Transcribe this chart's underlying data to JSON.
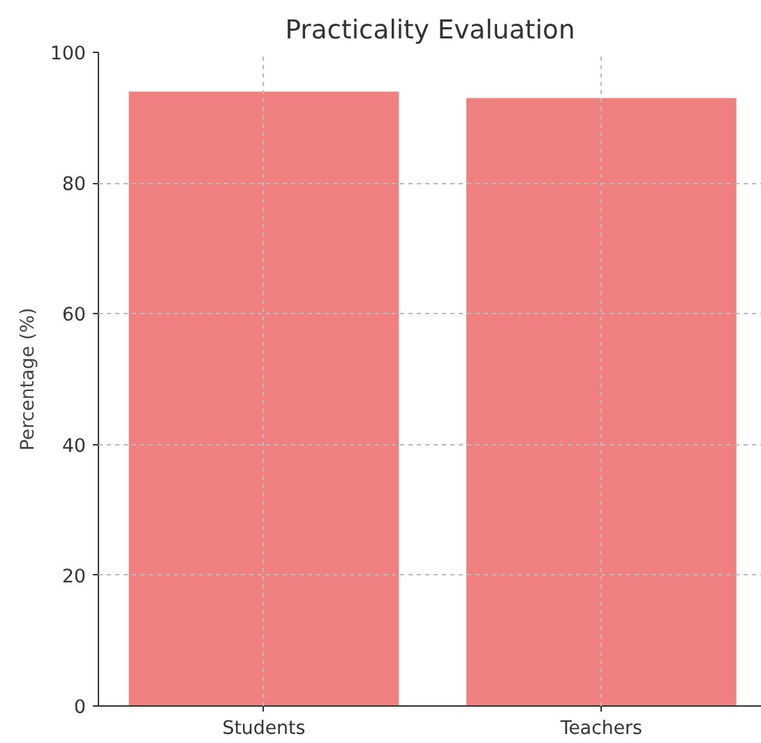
{
  "chart_data": {
    "type": "bar",
    "title": "Practicality Evaluation",
    "ylabel": "Percentage (%)",
    "categories": [
      "Students",
      "Teachers"
    ],
    "values": [
      94,
      93
    ],
    "color": "#f08080",
    "ylim": [
      0,
      100
    ],
    "yticks": [
      0,
      20,
      40,
      60,
      80,
      100
    ],
    "grid": true
  }
}
